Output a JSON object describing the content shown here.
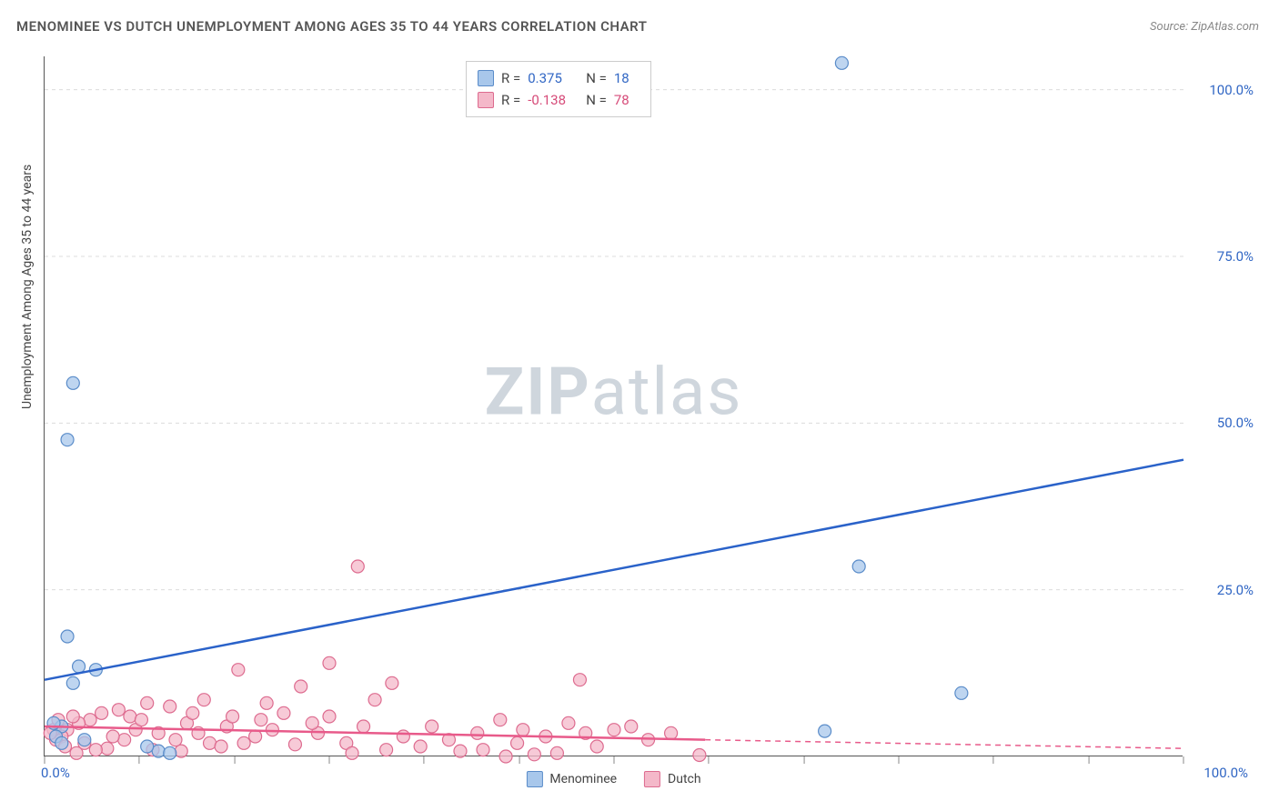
{
  "chart": {
    "title": "MENOMINEE VS DUTCH UNEMPLOYMENT AMONG AGES 35 TO 44 YEARS CORRELATION CHART",
    "source": "Source: ZipAtlas.com",
    "y_axis_title": "Unemployment Among Ages 35 to 44 years",
    "type": "scatter",
    "xlim": [
      0,
      100
    ],
    "ylim": [
      0,
      105
    ],
    "x_tick_labels": [
      {
        "pos": 0,
        "label": "0.0%",
        "anchor": "start"
      },
      {
        "pos": 100,
        "label": "100.0%",
        "anchor": "end"
      }
    ],
    "y_tick_labels": [
      {
        "pos": 25,
        "label": "25.0%"
      },
      {
        "pos": 50,
        "label": "50.0%"
      },
      {
        "pos": 75,
        "label": "75.0%"
      },
      {
        "pos": 100,
        "label": "100.0%"
      }
    ],
    "y_grid": [
      0,
      25,
      50,
      75,
      100
    ],
    "x_major_ticks": [
      0,
      8.3,
      16.7,
      25,
      33.3,
      41.7,
      50,
      58.3,
      66.7,
      75,
      83.3,
      91.7,
      100
    ],
    "background_color": "#ffffff",
    "grid_color": "#dcdcdc",
    "axis_color": "#555555",
    "watermark_zip": "ZIP",
    "watermark_atlas": "atlas",
    "watermark_color": "#cfd6dd",
    "series": [
      {
        "name": "Menominee",
        "marker_color": "#a8c7eb",
        "marker_stroke": "#5a8cc9",
        "marker_radius": 7,
        "marker_opacity": 0.75,
        "trend_color": "#2a62c9",
        "trend_width": 2.5,
        "trend": {
          "x1": 0,
          "y1": 11.5,
          "x2": 100,
          "y2": 44.5
        },
        "points": [
          [
            2.5,
            56.0
          ],
          [
            2.0,
            47.5
          ],
          [
            70.0,
            104.0
          ],
          [
            71.5,
            28.5
          ],
          [
            80.5,
            9.5
          ],
          [
            68.5,
            3.8
          ],
          [
            2.0,
            18.0
          ],
          [
            3.0,
            13.5
          ],
          [
            2.5,
            11.0
          ],
          [
            4.5,
            13.0
          ],
          [
            1.5,
            4.5
          ],
          [
            1.0,
            3.0
          ],
          [
            1.5,
            2.0
          ],
          [
            10.0,
            0.8
          ],
          [
            11.0,
            0.5
          ],
          [
            9.0,
            1.5
          ],
          [
            3.5,
            2.5
          ],
          [
            0.8,
            5.0
          ]
        ]
      },
      {
        "name": "Dutch",
        "marker_color": "#f4b8c9",
        "marker_stroke": "#dd6b8f",
        "marker_radius": 7,
        "marker_opacity": 0.75,
        "trend_color": "#e85a8a",
        "trend_width": 2.5,
        "trend_solid": {
          "x1": 0,
          "y1": 4.5,
          "x2": 58,
          "y2": 2.5
        },
        "trend_dash": {
          "x1": 58,
          "y1": 2.5,
          "x2": 100,
          "y2": 1.2
        },
        "points": [
          [
            27.5,
            28.5
          ],
          [
            25.0,
            14.0
          ],
          [
            17.0,
            13.0
          ],
          [
            22.5,
            10.5
          ],
          [
            30.5,
            11.0
          ],
          [
            47.0,
            11.5
          ],
          [
            29.0,
            8.5
          ],
          [
            25.0,
            6.0
          ],
          [
            19.5,
            8.0
          ],
          [
            21.0,
            6.5
          ],
          [
            14.0,
            8.5
          ],
          [
            11.0,
            7.5
          ],
          [
            9.0,
            8.0
          ],
          [
            6.5,
            7.0
          ],
          [
            5.0,
            6.5
          ],
          [
            7.5,
            6.0
          ],
          [
            12.5,
            5.0
          ],
          [
            10.0,
            3.5
          ],
          [
            16.0,
            4.5
          ],
          [
            18.5,
            3.0
          ],
          [
            14.5,
            2.0
          ],
          [
            8.0,
            4.0
          ],
          [
            4.0,
            5.5
          ],
          [
            3.0,
            5.0
          ],
          [
            2.0,
            4.0
          ],
          [
            1.5,
            3.0
          ],
          [
            1.0,
            2.5
          ],
          [
            0.8,
            4.0
          ],
          [
            2.5,
            6.0
          ],
          [
            1.2,
            5.5
          ],
          [
            0.5,
            3.5
          ],
          [
            1.8,
            1.5
          ],
          [
            3.5,
            2.0
          ],
          [
            5.5,
            1.2
          ],
          [
            7.0,
            2.5
          ],
          [
            9.5,
            1.0
          ],
          [
            12.0,
            0.8
          ],
          [
            11.5,
            2.5
          ],
          [
            13.5,
            3.5
          ],
          [
            15.5,
            1.5
          ],
          [
            17.5,
            2.0
          ],
          [
            20.0,
            4.0
          ],
          [
            22.0,
            1.8
          ],
          [
            24.0,
            3.5
          ],
          [
            26.5,
            2.0
          ],
          [
            23.5,
            5.0
          ],
          [
            28.0,
            4.5
          ],
          [
            30.0,
            1.0
          ],
          [
            31.5,
            3.0
          ],
          [
            34.0,
            4.5
          ],
          [
            35.5,
            2.5
          ],
          [
            38.0,
            3.5
          ],
          [
            40.0,
            5.5
          ],
          [
            41.5,
            2.0
          ],
          [
            42.0,
            4.0
          ],
          [
            44.0,
            3.0
          ],
          [
            43.0,
            0.3
          ],
          [
            46.0,
            5.0
          ],
          [
            45.0,
            0.5
          ],
          [
            47.5,
            3.5
          ],
          [
            48.5,
            1.5
          ],
          [
            50.0,
            4.0
          ],
          [
            51.5,
            4.5
          ],
          [
            53.0,
            2.5
          ],
          [
            55.0,
            3.5
          ],
          [
            57.5,
            0.2
          ],
          [
            40.5,
            0.0
          ],
          [
            33.0,
            1.5
          ],
          [
            36.5,
            0.8
          ],
          [
            6.0,
            3.0
          ],
          [
            4.5,
            1.0
          ],
          [
            2.8,
            0.5
          ],
          [
            8.5,
            5.5
          ],
          [
            13.0,
            6.5
          ],
          [
            16.5,
            6.0
          ],
          [
            19.0,
            5.5
          ],
          [
            27.0,
            0.5
          ],
          [
            38.5,
            1.0
          ]
        ]
      }
    ],
    "stats_box": {
      "rows": [
        {
          "swatch_fill": "#a8c7eb",
          "swatch_stroke": "#5a8cc9",
          "r_label": "R =",
          "r_val": "0.375",
          "n_label": "N =",
          "n_val": "18",
          "val_class": "stats-val-blue"
        },
        {
          "swatch_fill": "#f4b8c9",
          "swatch_stroke": "#dd6b8f",
          "r_label": "R =",
          "r_val": "-0.138",
          "n_label": "N =",
          "n_val": "78",
          "val_class": "stats-val-pink"
        }
      ]
    },
    "legend": [
      {
        "swatch_fill": "#a8c7eb",
        "swatch_stroke": "#5a8cc9",
        "label": "Menominee"
      },
      {
        "swatch_fill": "#f4b8c9",
        "swatch_stroke": "#dd6b8f",
        "label": "Dutch"
      }
    ]
  }
}
